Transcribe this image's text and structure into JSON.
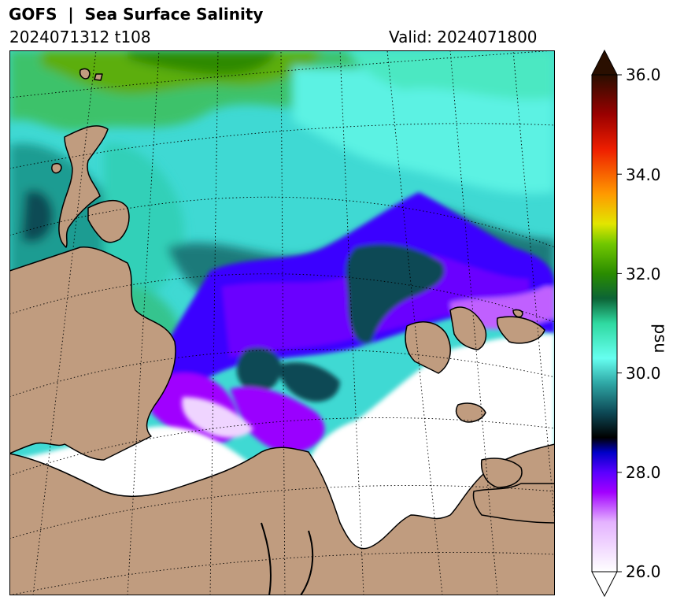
{
  "header": {
    "title": "GOFS  |  Sea Surface Salinity",
    "run_label": "2024071312 t108",
    "valid_label": "Valid: 2024071800"
  },
  "map": {
    "projection": "polar stereographic",
    "region": "Kara Sea / Yamal / Taymyr (Arctic)",
    "graticule_style": "dotted",
    "land_color": "#c09c7f",
    "ocean_fresh_color": "#ffffff"
  },
  "colorbar": {
    "unit": "psu",
    "min": 26.0,
    "max": 36.0,
    "extend": "both",
    "tick_labels": [
      "36.0",
      "34.0",
      "32.0",
      "30.0",
      "28.0",
      "26.0"
    ],
    "tick_values": [
      36.0,
      34.0,
      32.0,
      30.0,
      28.0,
      26.0
    ],
    "colormap_stops": [
      {
        "value": 26.0,
        "color": "#ffffff"
      },
      {
        "value": 27.0,
        "color": "#e4b2ff"
      },
      {
        "value": 27.6,
        "color": "#a200ff"
      },
      {
        "value": 28.0,
        "color": "#5a00ff"
      },
      {
        "value": 28.4,
        "color": "#0000c8"
      },
      {
        "value": 28.7,
        "color": "#000000"
      },
      {
        "value": 29.2,
        "color": "#0d4855"
      },
      {
        "value": 29.8,
        "color": "#2fa8a6"
      },
      {
        "value": 30.3,
        "color": "#66fff0"
      },
      {
        "value": 31.0,
        "color": "#2fd9a0"
      },
      {
        "value": 31.5,
        "color": "#0c6436"
      },
      {
        "value": 32.0,
        "color": "#2a8c00"
      },
      {
        "value": 32.6,
        "color": "#72c800"
      },
      {
        "value": 33.0,
        "color": "#e2e600"
      },
      {
        "value": 33.6,
        "color": "#ff9a00"
      },
      {
        "value": 34.5,
        "color": "#ee1e00"
      },
      {
        "value": 35.2,
        "color": "#9a0000"
      },
      {
        "value": 36.0,
        "color": "#2a0f00"
      }
    ]
  }
}
